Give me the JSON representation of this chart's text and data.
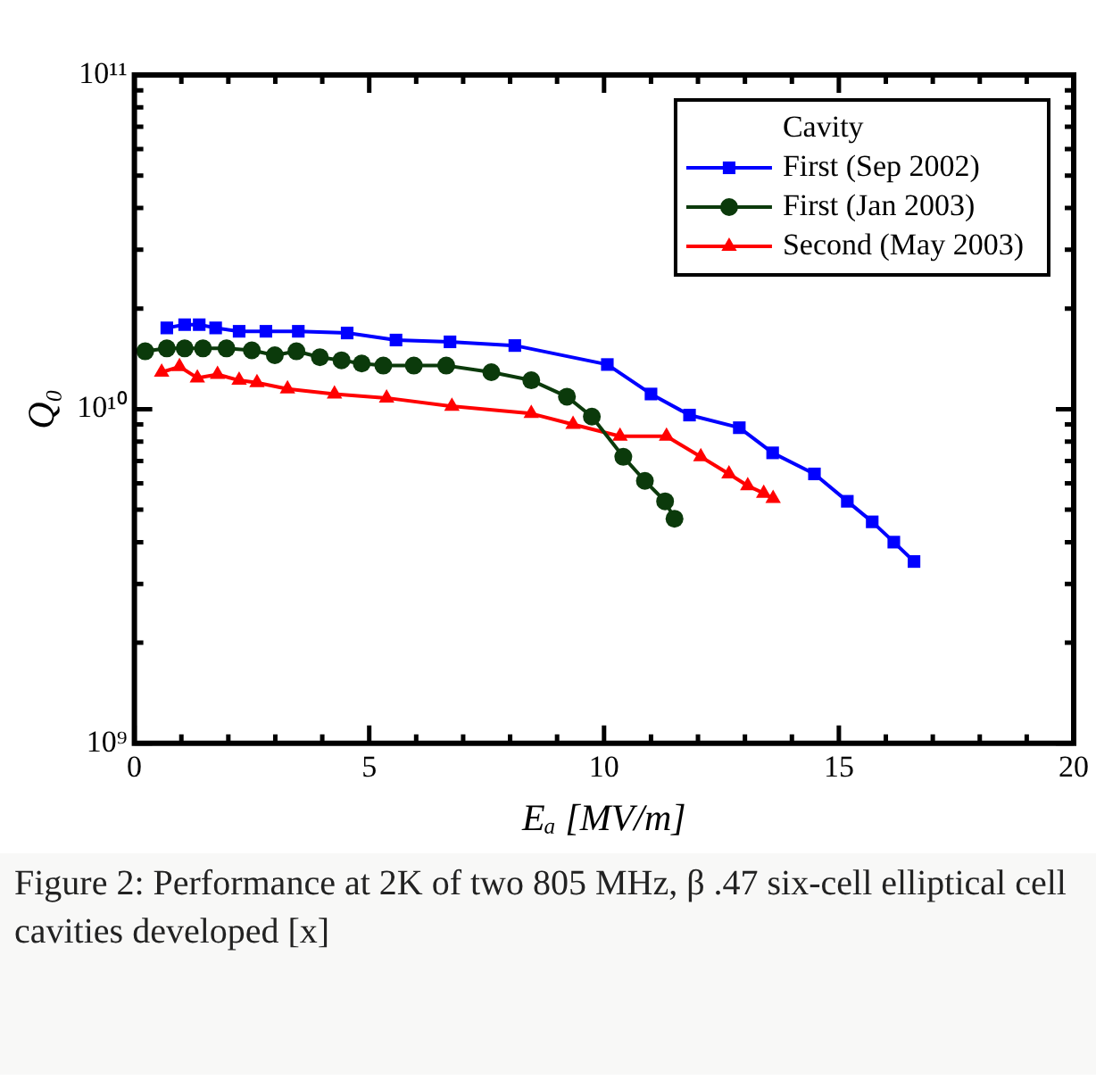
{
  "chart_data": {
    "type": "line",
    "xlabel": "Eₐ [MV/m]",
    "ylabel": "Q₀",
    "log": "y",
    "legend": "top right",
    "legend_title": "Cavity",
    "xlim": [
      0,
      20
    ],
    "ylim": [
      1000000000.0,
      100000000000.0
    ],
    "xticks": [
      0,
      {
        "value": 1,
        "label": null
      },
      {
        "value": 2,
        "label": null
      },
      {
        "value": 3,
        "label": null
      },
      {
        "value": 4,
        "label": null
      },
      5,
      {
        "value": 6,
        "label": null
      },
      {
        "value": 7,
        "label": null
      },
      {
        "value": 8,
        "label": null
      },
      {
        "value": 9,
        "label": null
      },
      10,
      {
        "value": 11,
        "label": null
      },
      {
        "value": 12,
        "label": null
      },
      {
        "value": 13,
        "label": null
      },
      {
        "value": 14,
        "label": null
      },
      15,
      {
        "value": 16,
        "label": null
      },
      {
        "value": 17,
        "label": null
      },
      {
        "value": 18,
        "label": null
      },
      {
        "value": 19,
        "label": null
      },
      20
    ],
    "yticks": [
      {
        "value": 1000000000.0,
        "label": "10⁹"
      },
      {
        "value": 2000000000.0,
        "label": null
      },
      {
        "value": 3000000000.0,
        "label": null
      },
      {
        "value": 4000000000.0,
        "label": null
      },
      {
        "value": 5000000000.0,
        "label": null
      },
      {
        "value": 6000000000.0,
        "label": null
      },
      {
        "value": 7000000000.0,
        "label": null
      },
      {
        "value": 8000000000.0,
        "label": null
      },
      {
        "value": 9000000000.0,
        "label": null
      },
      {
        "value": 10000000000.0,
        "label": "10¹⁰"
      },
      {
        "value": 20000000000.0,
        "label": null
      },
      {
        "value": 30000000000.0,
        "label": null
      },
      {
        "value": 40000000000.0,
        "label": null
      },
      {
        "value": 50000000000.0,
        "label": null
      },
      {
        "value": 60000000000.0,
        "label": null
      },
      {
        "value": 70000000000.0,
        "label": null
      },
      {
        "value": 80000000000.0,
        "label": null
      },
      {
        "value": 90000000000.0,
        "label": null
      },
      {
        "value": 100000000000.0,
        "label": "10¹¹"
      }
    ],
    "series": [
      {
        "name": "First (Sep 2002)",
        "color": "#0000ff",
        "marker": "square",
        "x": [
          0.69,
          1.07,
          1.38,
          1.73,
          2.23,
          2.8,
          3.49,
          4.53,
          5.57,
          6.72,
          8.1,
          10.07,
          11.0,
          11.82,
          12.88,
          13.59,
          14.48,
          15.18,
          15.71,
          16.17,
          16.6
        ],
        "values": [
          17500000000.0,
          17900000000.0,
          17900000000.0,
          17500000000.0,
          17100000000.0,
          17100000000.0,
          17100000000.0,
          16900000000.0,
          16100000000.0,
          15900000000.0,
          15500000000.0,
          13600000000.0,
          11100000000.0,
          9600000000.0,
          8800000000.0,
          7400000000.0,
          6400000000.0,
          5300000000.0,
          4600000000.0,
          4000000000.0,
          3500000000.0
        ]
      },
      {
        "name": "First (Jan 2003)",
        "color": "#0b3a0b",
        "marker": "circle",
        "x": [
          0.23,
          0.69,
          1.07,
          1.46,
          1.96,
          2.5,
          2.99,
          3.45,
          3.95,
          4.41,
          4.84,
          5.3,
          5.95,
          6.64,
          7.6,
          8.45,
          9.21,
          9.74,
          10.41,
          10.87,
          11.3,
          11.5
        ],
        "values": [
          14900000000.0,
          15200000000.0,
          15200000000.0,
          15200000000.0,
          15200000000.0,
          15000000000.0,
          14500000000.0,
          14900000000.0,
          14300000000.0,
          14000000000.0,
          13700000000.0,
          13500000000.0,
          13500000000.0,
          13500000000.0,
          12900000000.0,
          12200000000.0,
          10900000000.0,
          9500000000.0,
          7200000000.0,
          6100000000.0,
          5300000000.0,
          4700000000.0
        ]
      },
      {
        "name": "Second (May 2003)",
        "color": "#ff0000",
        "marker": "triangle",
        "x": [
          0.58,
          0.96,
          1.34,
          1.77,
          2.23,
          2.61,
          3.26,
          4.26,
          5.37,
          6.76,
          8.45,
          9.34,
          10.34,
          11.33,
          12.06,
          12.66,
          13.06,
          13.4,
          13.6
        ],
        "values": [
          12900000000.0,
          13400000000.0,
          12400000000.0,
          12700000000.0,
          12200000000.0,
          12000000000.0,
          11500000000.0,
          11100000000.0,
          10800000000.0,
          10200000000.0,
          9700000000.0,
          9000000000.0,
          8300000000.0,
          8300000000.0,
          7200000000.0,
          6400000000.0,
          5900000000.0,
          5600000000.0,
          5400000000.0
        ]
      }
    ],
    "annotations": [
      "Figure 2: Performance at 2K of two 805 MHz, β .47 six-cell elliptical cell cavities developed [x]"
    ]
  }
}
